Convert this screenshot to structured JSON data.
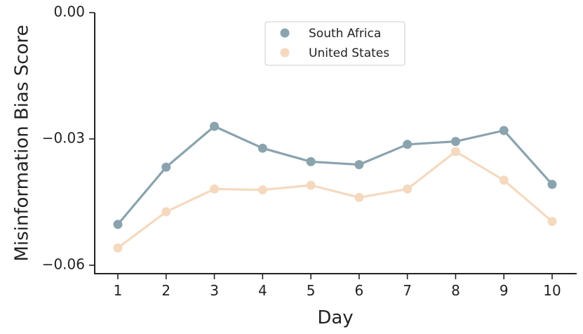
{
  "chart_data": {
    "type": "line",
    "xlabel": "Day",
    "ylabel": "Misinformation Bias Score",
    "x": [
      1,
      2,
      3,
      4,
      5,
      6,
      7,
      8,
      9,
      10
    ],
    "x_tick_labels": [
      "1",
      "2",
      "3",
      "4",
      "5",
      "6",
      "7",
      "8",
      "9",
      "10"
    ],
    "ylim": [
      -0.062,
      0.0
    ],
    "y_ticks": [
      0.0,
      -0.03,
      -0.06
    ],
    "y_tick_labels": [
      "0.00",
      "−0.03",
      "−0.06"
    ],
    "grid": false,
    "legend_position": "top-center",
    "series": [
      {
        "name": "South Africa",
        "color": "#8aa3ae",
        "values": [
          -0.0503,
          -0.0367,
          -0.027,
          -0.0322,
          -0.0354,
          -0.0361,
          -0.0313,
          -0.0306,
          -0.028,
          -0.0408
        ]
      },
      {
        "name": "United States",
        "color": "#f5d9bf",
        "values": [
          -0.0559,
          -0.0473,
          -0.0419,
          -0.0421,
          -0.041,
          -0.0439,
          -0.0419,
          -0.033,
          -0.0398,
          -0.0496
        ]
      }
    ]
  }
}
